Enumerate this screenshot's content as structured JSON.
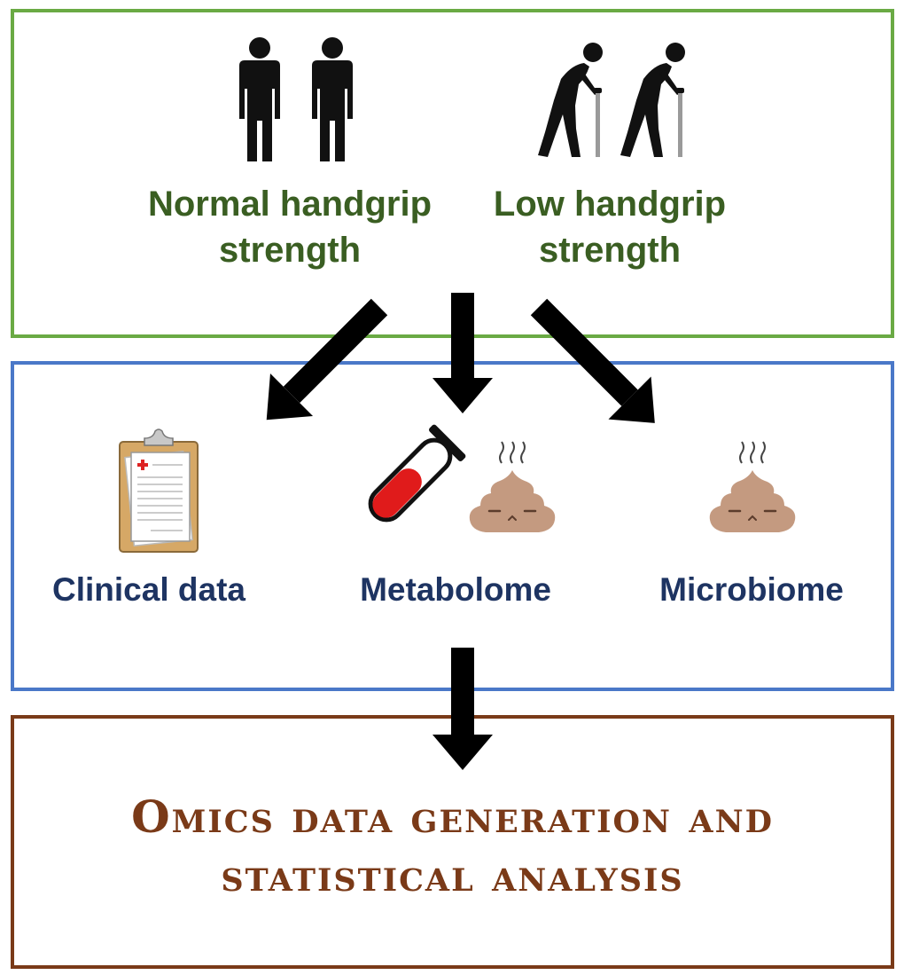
{
  "groups": {
    "normal": {
      "line1": "Normal handgrip",
      "line2": "strength",
      "icon": "standing-people-icon"
    },
    "low": {
      "line1": "Low handgrip",
      "line2": "strength",
      "icon": "elderly-with-cane-icon"
    }
  },
  "data_types": {
    "clinical": {
      "label": "Clinical data",
      "icon": "clipboard-icon"
    },
    "metabolome": {
      "label": "Metabolome",
      "icons": [
        "blood-tube-icon",
        "stool-icon"
      ]
    },
    "microbiome": {
      "label": "Microbiome",
      "icon": "stool-icon"
    }
  },
  "analysis": {
    "line1": "Omics data generation and",
    "line2": "statistical analysis"
  },
  "colors": {
    "groups_border": "#6aaa44",
    "groups_text": "#3a5e22",
    "data_border": "#4a78c8",
    "data_text": "#1e3462",
    "analysis_border": "#7a3a18",
    "analysis_text": "#7a3a18",
    "arrow": "#000000",
    "stool": "#c49a80",
    "blood": "#e01b1b"
  }
}
